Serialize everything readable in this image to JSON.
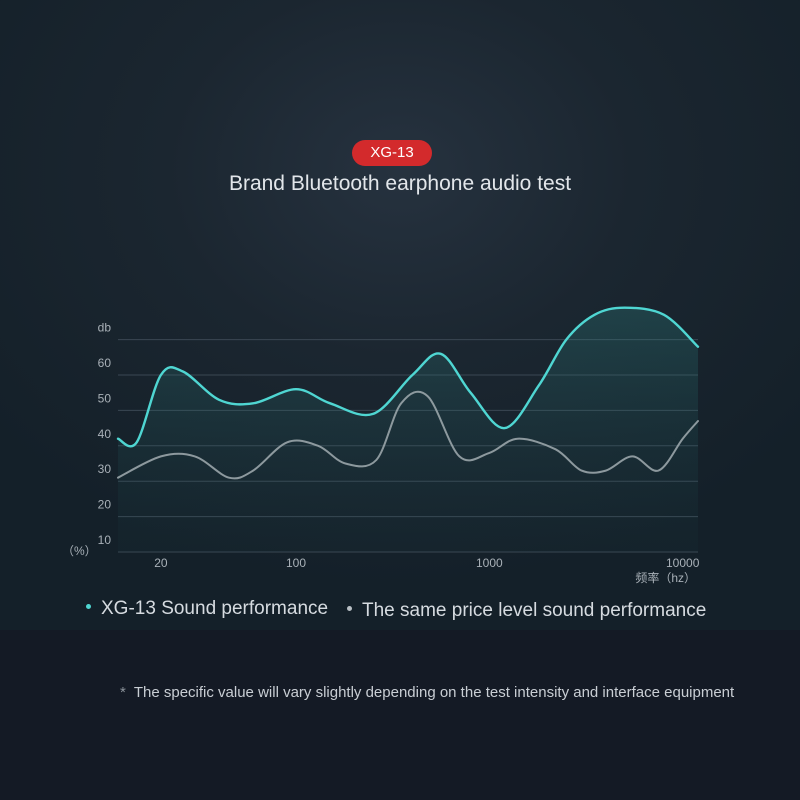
{
  "badge": "XG-13",
  "headline": "Brand Bluetooth earphone audio test",
  "footnote": {
    "marker": "*",
    "text": "The specific value will vary slightly depending on the test intensity and interface equipment"
  },
  "colors": {
    "accent": "#4fd6d2",
    "comparison": "#9aa5aa",
    "badge": "#d32a2c"
  },
  "chart_data": {
    "type": "line",
    "x_scale": "log",
    "xlabel": "频率（hz）",
    "ylabel_top": "db",
    "ylabel_bottom": "（%）",
    "yticks": [
      "10",
      "20",
      "30",
      "40",
      "50",
      "60",
      "db"
    ],
    "xticks": [
      "20",
      "100",
      "1000",
      "10000"
    ],
    "grid": true,
    "legend_position": "bottom",
    "series": [
      {
        "name": "XG-13 Sound performance",
        "color": "#4fd6d2",
        "points": [
          [
            12,
            42
          ],
          [
            15,
            41
          ],
          [
            20,
            60
          ],
          [
            26,
            61
          ],
          [
            40,
            53
          ],
          [
            60,
            52
          ],
          [
            100,
            56
          ],
          [
            150,
            52
          ],
          [
            250,
            49
          ],
          [
            400,
            60
          ],
          [
            560,
            66
          ],
          [
            800,
            55
          ],
          [
            1200,
            45
          ],
          [
            1800,
            57
          ],
          [
            2500,
            70
          ],
          [
            3500,
            77
          ],
          [
            5000,
            79
          ],
          [
            8000,
            77
          ],
          [
            12000,
            68
          ]
        ]
      },
      {
        "name": "The same price level sound performance",
        "color": "#9aa5aa",
        "points": [
          [
            12,
            31
          ],
          [
            20,
            37
          ],
          [
            30,
            37
          ],
          [
            45,
            31
          ],
          [
            60,
            33
          ],
          [
            90,
            41
          ],
          [
            130,
            40
          ],
          [
            180,
            35
          ],
          [
            260,
            36
          ],
          [
            350,
            52
          ],
          [
            480,
            54
          ],
          [
            700,
            37
          ],
          [
            1000,
            38
          ],
          [
            1400,
            42
          ],
          [
            2200,
            39
          ],
          [
            3000,
            33
          ],
          [
            4000,
            33
          ],
          [
            5500,
            37
          ],
          [
            7500,
            33
          ],
          [
            10000,
            42
          ],
          [
            12000,
            47
          ]
        ]
      }
    ]
  }
}
